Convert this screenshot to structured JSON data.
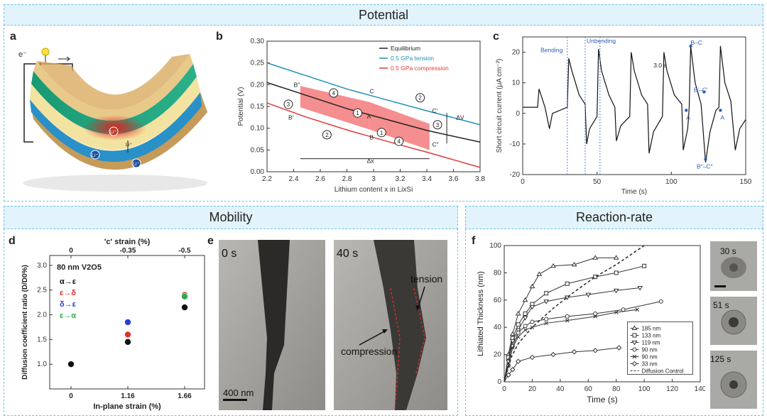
{
  "sections": {
    "potential": "Potential",
    "mobility": "Mobility",
    "reaction_rate": "Reaction-rate"
  },
  "panel_a": {
    "label": "a",
    "electron": "e⁻",
    "ions": [
      "Li⁺",
      "Li⁺",
      "Li⁺",
      "Li⁺"
    ]
  },
  "chart_data": [
    {
      "id": "b",
      "type": "line",
      "panel_label": "b",
      "xlabel": "Lithium content x in LixSi",
      "ylabel": "Potential (V)",
      "xlim": [
        2.2,
        3.8
      ],
      "ylim": [
        0.0,
        0.3
      ],
      "xticks": [
        "2.2",
        "2.4",
        "2.6",
        "2.8",
        "3",
        "3.2",
        "3.4",
        "3.6",
        "3.8"
      ],
      "yticks": [
        "0.00",
        "0.05",
        "0.10",
        "0.15",
        "0.20",
        "0.25",
        "0.30"
      ],
      "series": [
        {
          "name": "Equilibrium",
          "color": "#222222",
          "x": [
            2.2,
            2.5,
            2.8,
            3.1,
            3.4,
            3.8
          ],
          "y": [
            0.205,
            0.175,
            0.145,
            0.12,
            0.095,
            0.068
          ]
        },
        {
          "name": "0.5 GPa tension",
          "color": "#1f8fb8",
          "x": [
            2.2,
            2.5,
            2.8,
            3.1,
            3.4,
            3.8
          ],
          "y": [
            0.25,
            0.22,
            0.19,
            0.165,
            0.14,
            0.108
          ]
        },
        {
          "name": "0.5 GPa compression",
          "color": "#e03a3a",
          "x": [
            2.2,
            2.5,
            2.8,
            3.1,
            3.4,
            3.8
          ],
          "y": [
            0.158,
            0.125,
            0.096,
            0.07,
            0.045,
            0.01
          ]
        }
      ],
      "annotations": [
        "B″",
        "B′",
        "C",
        "A",
        "B",
        "C′",
        "C″",
        "ΔV",
        "Δx",
        "1",
        "2",
        "3",
        "4"
      ]
    },
    {
      "id": "c",
      "type": "line",
      "panel_label": "c",
      "xlabel": "Time (s)",
      "ylabel": "Short circuit current (μA cm⁻²)",
      "xlim": [
        0,
        150
      ],
      "ylim": [
        -20,
        25
      ],
      "xticks": [
        "0",
        "50",
        "100",
        "150"
      ],
      "yticks": [
        "20",
        "10",
        "0",
        "-10",
        "-20"
      ],
      "annotations": [
        "Bending",
        "Unbending",
        "3.0 s",
        "B–C",
        "B′–C′",
        "A",
        "A",
        "B″–C″"
      ]
    },
    {
      "id": "d",
      "type": "scatter",
      "panel_label": "d",
      "xlabel": "In-plane strain (%)",
      "ylabel": "Diffusion coefficient ratio (D/D0%)",
      "top_axis_label": "'c' strain (%)",
      "xticks": [
        "0",
        "1.16",
        "1.66"
      ],
      "top_ticks": [
        "0",
        "-0.35",
        "-0.5"
      ],
      "yticks": [
        "1.0",
        "1.5",
        "2.0",
        "2.5",
        "3.0"
      ],
      "ylim": [
        0.5,
        3.2
      ],
      "sample": "80 nm V2O5",
      "series": [
        {
          "name": "α→ε",
          "color": "#111111",
          "x": [
            0,
            1.16,
            1.66
          ],
          "y": [
            1.0,
            1.45,
            2.15
          ]
        },
        {
          "name": "ε→δ",
          "color": "#e03030",
          "x": [
            1.16,
            1.66
          ],
          "y": [
            1.6,
            2.4
          ]
        },
        {
          "name": "δ→ε",
          "color": "#2a3fd0",
          "x": [
            1.16
          ],
          "y": [
            1.85
          ]
        },
        {
          "name": "ε→α",
          "color": "#2fa84a",
          "x": [
            1.66
          ],
          "y": [
            2.37
          ]
        }
      ]
    },
    {
      "id": "f",
      "type": "line",
      "panel_label": "f",
      "xlabel": "Time (s)",
      "ylabel": "Lithiated Thickness (nm)",
      "xlim": [
        0,
        140
      ],
      "ylim": [
        0,
        100
      ],
      "xticks": [
        "0",
        "20",
        "40",
        "60",
        "80",
        "100",
        "120",
        "140"
      ],
      "yticks": [
        "0",
        "20",
        "40",
        "60",
        "80",
        "100"
      ],
      "series": [
        {
          "name": "185 nm",
          "marker": "triangle",
          "x": [
            0,
            3,
            6,
            10,
            15,
            20,
            25,
            35,
            50,
            65,
            80
          ],
          "y": [
            0,
            20,
            35,
            50,
            60,
            70,
            79,
            85,
            86,
            91,
            91
          ]
        },
        {
          "name": "133 nm",
          "marker": "square",
          "x": [
            0,
            3,
            6,
            10,
            15,
            20,
            30,
            45,
            65,
            80,
            100
          ],
          "y": [
            0,
            18,
            32,
            42,
            50,
            57,
            65,
            72,
            77,
            80,
            85
          ]
        },
        {
          "name": "119 nm",
          "marker": "triangle-down",
          "x": [
            0,
            3,
            6,
            10,
            15,
            20,
            30,
            45,
            60,
            80,
            97
          ],
          "y": [
            0,
            15,
            30,
            38,
            47,
            55,
            59,
            62,
            64,
            67,
            69
          ]
        },
        {
          "name": "90 nm",
          "marker": "circle",
          "x": [
            0,
            3,
            6,
            10,
            15,
            20,
            30,
            45,
            65,
            85,
            112
          ],
          "y": [
            0,
            12,
            26,
            36,
            41,
            44,
            46,
            48,
            50,
            53,
            59
          ]
        },
        {
          "name": "90 nm",
          "marker": "x",
          "x": [
            0,
            3,
            6,
            10,
            15,
            20,
            30,
            45,
            65,
            80,
            95
          ],
          "y": [
            0,
            12,
            25,
            33,
            38,
            40,
            43,
            45,
            48,
            51,
            53
          ]
        },
        {
          "name": "33 nm",
          "marker": "diamond",
          "x": [
            0,
            3,
            6,
            10,
            20,
            35,
            50,
            65,
            82
          ],
          "y": [
            0,
            5,
            9,
            15,
            18,
            20,
            22,
            23,
            25
          ]
        },
        {
          "name": "Diffusion Control",
          "marker": "dashed",
          "x": [
            0,
            5,
            10,
            20,
            35,
            50,
            65,
            80,
            100
          ],
          "y": [
            0,
            18,
            28,
            40,
            54,
            66,
            77,
            86,
            100
          ]
        }
      ]
    }
  ],
  "panel_e": {
    "label": "e",
    "time_left": "0 s",
    "time_right": "40 s",
    "tension": "tension",
    "compression": "compression",
    "scale_bar": "400 nm"
  },
  "panel_f_insets": [
    "30 s",
    "51 s",
    "125 s"
  ]
}
